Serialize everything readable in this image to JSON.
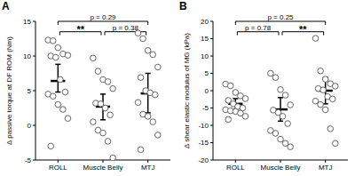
{
  "chart_data": [
    {
      "type": "scatter",
      "panel": "A",
      "y_label": "Δ passive torque at DF ROM (Nm)",
      "categories": [
        "ROLL",
        "Muscle Belly",
        "MTJ"
      ],
      "color": "#555555",
      "points": [
        [
          12.3,
          12.2,
          11.2,
          10.3,
          10.1,
          10.0,
          9.8,
          6.6,
          4.8,
          4.5,
          4.2,
          3.0,
          2.3,
          1.0,
          -3.0
        ],
        [
          9.7,
          7.8,
          6.6,
          6.3,
          5.3,
          3.2,
          3.1,
          2.5,
          1.5,
          0.5,
          -0.7,
          -1.1,
          -2.3,
          -4.7
        ],
        [
          13.3,
          12.5,
          10.8,
          10.2,
          8.4,
          6.9,
          5.0,
          4.7,
          4.4,
          3.3,
          1.6,
          1.3,
          0.5,
          -1.4,
          -3.5
        ]
      ],
      "means": [
        6.4,
        2.7,
        4.6
      ],
      "error_low": [
        4.8,
        0.8,
        1.8
      ],
      "error_high": [
        8.8,
        4.5,
        7.5
      ],
      "ylim": [
        -5,
        15
      ],
      "yticks": [
        -5,
        0,
        5,
        10,
        15
      ],
      "annotations": [
        {
          "groups": [
            0,
            2
          ],
          "text": "p = 0.29"
        },
        {
          "groups": [
            0,
            1
          ],
          "text": "**"
        },
        {
          "groups": [
            1,
            2
          ],
          "text": "p = 0.38"
        }
      ]
    },
    {
      "type": "scatter",
      "panel": "B",
      "y_label": "Δ shear elastic modulus of MG (kPa)",
      "categories": [
        "ROLL",
        "Muscle Belly",
        "MTJ"
      ],
      "color": "#555555",
      "points": [
        [
          1.9,
          1.4,
          -0.5,
          -1.5,
          -2.3,
          -2.8,
          -3.8,
          -4.6,
          -5.0,
          -5.5,
          -5.8,
          -6.0,
          -6.5,
          -7.4,
          -8.3
        ],
        [
          5.0,
          3.8,
          0.3,
          -1.3,
          -4.1,
          -5.6,
          -6.3,
          -7.4,
          -9.5,
          -11.5,
          -12.3,
          -14.0,
          -15.2,
          -16.2
        ],
        [
          15.1,
          5.7,
          3.3,
          2.0,
          1.3,
          0.6,
          0.2,
          -1.7,
          -2.4,
          -3.0,
          -4.0,
          -5.5,
          -11.0,
          -15.2
        ]
      ],
      "means": [
        -3.8,
        -5.4,
        0.0
      ],
      "error_low": [
        -5.3,
        -8.8,
        -3.8
      ],
      "error_high": [
        -2.3,
        -2.0,
        3.8
      ],
      "ylim": [
        -20,
        20
      ],
      "yticks": [
        -20,
        -15,
        -10,
        -5,
        0,
        5,
        10,
        15,
        20
      ],
      "annotations": [
        {
          "groups": [
            0,
            2
          ],
          "text": "p = 0.25"
        },
        {
          "groups": [
            0,
            1
          ],
          "text": "p = 0.78"
        },
        {
          "groups": [
            1,
            2
          ],
          "text": "**"
        }
      ]
    }
  ]
}
